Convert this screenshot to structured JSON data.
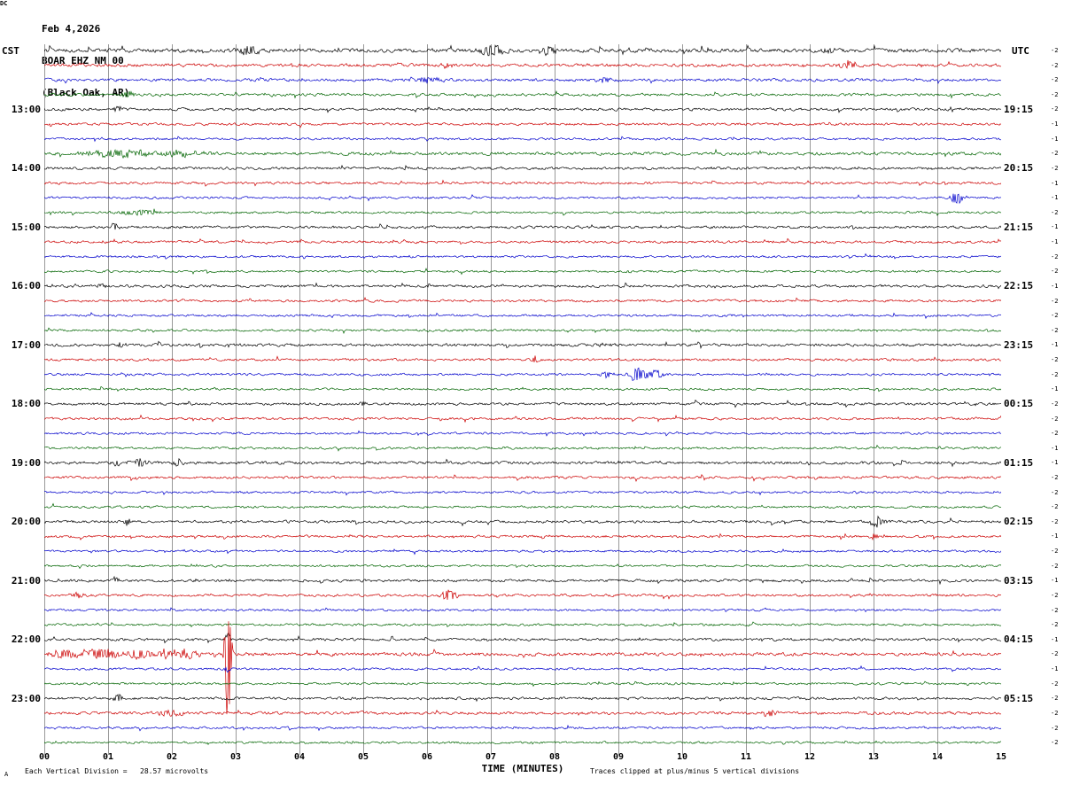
{
  "header": {
    "date": "Feb 4,2026",
    "station": "BOAR EHZ NM 00",
    "location": "(Black Oak, AR)"
  },
  "footnotes": {
    "left": "Each Vertical Division =   28.57 microvolts",
    "right": "Traces clipped at plus/minus 5 vertical divisions",
    "corner_mark": "A"
  },
  "chart_data": {
    "type": "line",
    "subtype": "helicorder-seismogram",
    "title": "BOAR EHZ NM 00 (Black Oak, AR) Feb 4,2026",
    "xlabel": "TIME (MINUTES)",
    "x_range": [
      0,
      15
    ],
    "x_ticks": [
      "00",
      "01",
      "02",
      "03",
      "04",
      "05",
      "06",
      "07",
      "08",
      "09",
      "10",
      "11",
      "12",
      "13",
      "14",
      "15"
    ],
    "left_time_axis": "CST",
    "right_time_axis": "UTC",
    "dc_label": "DC",
    "microvolts_per_division": 28.57,
    "clip_divisions": 5,
    "grid": true,
    "trace_colors_cycle": [
      "#000000",
      "#cc0000",
      "#0000cc",
      "#006400"
    ],
    "rows": [
      {
        "cst": "",
        "utc": "",
        "dc": -2,
        "amp": 1.7,
        "events": [
          [
            3.2,
            5,
            0.15
          ],
          [
            7.0,
            6,
            0.2
          ],
          [
            7.9,
            5,
            0.15
          ],
          [
            12.3,
            3,
            0.12
          ]
        ]
      },
      {
        "cst": "",
        "utc": "",
        "dc": -2,
        "amp": 1.4,
        "events": [
          [
            6.3,
            3,
            0.1
          ],
          [
            12.6,
            4,
            0.15
          ]
        ]
      },
      {
        "cst": "",
        "utc": "",
        "dc": -2,
        "amp": 1.3,
        "events": [
          [
            6.0,
            3,
            0.2
          ],
          [
            8.8,
            3,
            0.15
          ]
        ]
      },
      {
        "cst": "",
        "utc": "",
        "dc": -2,
        "amp": 1.2,
        "events": [
          [
            1.3,
            3,
            0.12
          ]
        ]
      },
      {
        "cst": "13:00",
        "utc": "19:15",
        "dc": -2,
        "amp": 1.2,
        "events": [
          [
            1.15,
            6,
            0.05
          ]
        ]
      },
      {
        "cst": "",
        "utc": "",
        "dc": -1,
        "amp": 1.1,
        "events": []
      },
      {
        "cst": "",
        "utc": "",
        "dc": -1,
        "amp": 1.0,
        "events": []
      },
      {
        "cst": "",
        "utc": "",
        "dc": -2,
        "amp": 1.4,
        "events": [
          [
            1.2,
            4,
            0.5
          ],
          [
            2.1,
            3,
            0.4
          ]
        ]
      },
      {
        "cst": "14:00",
        "utc": "20:15",
        "dc": -2,
        "amp": 1.2,
        "events": []
      },
      {
        "cst": "",
        "utc": "",
        "dc": -1,
        "amp": 1.1,
        "events": []
      },
      {
        "cst": "",
        "utc": "",
        "dc": -1,
        "amp": 1.0,
        "events": [
          [
            14.3,
            8,
            0.08
          ]
        ]
      },
      {
        "cst": "",
        "utc": "",
        "dc": -2,
        "amp": 1.0,
        "events": [
          [
            1.5,
            3,
            0.3
          ]
        ]
      },
      {
        "cst": "15:00",
        "utc": "21:15",
        "dc": -1,
        "amp": 1.2,
        "events": [
          [
            1.1,
            5,
            0.05
          ]
        ]
      },
      {
        "cst": "",
        "utc": "",
        "dc": -1,
        "amp": 1.1,
        "events": []
      },
      {
        "cst": "",
        "utc": "",
        "dc": -2,
        "amp": 1.0,
        "events": []
      },
      {
        "cst": "",
        "utc": "",
        "dc": -2,
        "amp": 1.0,
        "events": []
      },
      {
        "cst": "16:00",
        "utc": "22:15",
        "dc": -1,
        "amp": 1.2,
        "events": [
          [
            0.9,
            3,
            0.06
          ]
        ]
      },
      {
        "cst": "",
        "utc": "",
        "dc": -2,
        "amp": 1.1,
        "events": []
      },
      {
        "cst": "",
        "utc": "",
        "dc": -2,
        "amp": 1.0,
        "events": []
      },
      {
        "cst": "",
        "utc": "",
        "dc": -2,
        "amp": 1.0,
        "events": []
      },
      {
        "cst": "17:00",
        "utc": "23:15",
        "dc": -1,
        "amp": 1.3,
        "events": [
          [
            1.2,
            3,
            0.06
          ],
          [
            8.8,
            3,
            0.08
          ]
        ]
      },
      {
        "cst": "",
        "utc": "",
        "dc": -2,
        "amp": 1.1,
        "events": [
          [
            7.7,
            4,
            0.06
          ]
        ]
      },
      {
        "cst": "",
        "utc": "",
        "dc": -2,
        "amp": 1.0,
        "events": [
          [
            8.8,
            4,
            0.1
          ],
          [
            9.3,
            8,
            0.15
          ],
          [
            9.6,
            5,
            0.1
          ]
        ]
      },
      {
        "cst": "",
        "utc": "",
        "dc": -1,
        "amp": 1.0,
        "events": []
      },
      {
        "cst": "18:00",
        "utc": "00:15",
        "dc": -2,
        "amp": 1.2,
        "events": [
          [
            5.0,
            3,
            0.06
          ]
        ]
      },
      {
        "cst": "",
        "utc": "",
        "dc": -2,
        "amp": 1.1,
        "events": []
      },
      {
        "cst": "",
        "utc": "",
        "dc": -2,
        "amp": 1.0,
        "events": []
      },
      {
        "cst": "",
        "utc": "",
        "dc": -1,
        "amp": 1.0,
        "events": []
      },
      {
        "cst": "19:00",
        "utc": "01:15",
        "dc": -1,
        "amp": 1.3,
        "events": [
          [
            1.15,
            6,
            0.06
          ],
          [
            1.5,
            5,
            0.1
          ],
          [
            2.1,
            3,
            0.08
          ]
        ]
      },
      {
        "cst": "",
        "utc": "",
        "dc": -2,
        "amp": 1.1,
        "events": []
      },
      {
        "cst": "",
        "utc": "",
        "dc": -2,
        "amp": 1.0,
        "events": []
      },
      {
        "cst": "",
        "utc": "",
        "dc": -2,
        "amp": 1.0,
        "events": []
      },
      {
        "cst": "20:00",
        "utc": "02:15",
        "dc": -2,
        "amp": 1.2,
        "events": [
          [
            1.3,
            4,
            0.06
          ],
          [
            13.05,
            7,
            0.1
          ]
        ]
      },
      {
        "cst": "",
        "utc": "",
        "dc": -1,
        "amp": 1.1,
        "events": [
          [
            13.0,
            3,
            0.1
          ]
        ]
      },
      {
        "cst": "",
        "utc": "",
        "dc": -2,
        "amp": 1.0,
        "events": []
      },
      {
        "cst": "",
        "utc": "",
        "dc": -2,
        "amp": 1.0,
        "events": []
      },
      {
        "cst": "21:00",
        "utc": "03:15",
        "dc": -1,
        "amp": 1.2,
        "events": [
          [
            1.1,
            4,
            0.06
          ]
        ]
      },
      {
        "cst": "",
        "utc": "",
        "dc": -2,
        "amp": 1.1,
        "events": [
          [
            0.5,
            3,
            0.1
          ],
          [
            6.35,
            7,
            0.12
          ]
        ]
      },
      {
        "cst": "",
        "utc": "",
        "dc": -2,
        "amp": 1.0,
        "events": []
      },
      {
        "cst": "",
        "utc": "",
        "dc": -2,
        "amp": 1.0,
        "events": []
      },
      {
        "cst": "22:00",
        "utc": "04:15",
        "dc": -1,
        "amp": 1.2,
        "events": [
          [
            2.88,
            10,
            0.04
          ]
        ]
      },
      {
        "cst": "",
        "utc": "",
        "dc": -2,
        "amp": 1.5,
        "events": [
          [
            0.3,
            5,
            0.2
          ],
          [
            0.9,
            6,
            0.25
          ],
          [
            1.5,
            5,
            0.2
          ],
          [
            1.9,
            4,
            0.15
          ],
          [
            2.2,
            5,
            0.2
          ],
          [
            2.88,
            85,
            0.05
          ]
        ]
      },
      {
        "cst": "",
        "utc": "",
        "dc": -1,
        "amp": 1.0,
        "events": [
          [
            2.88,
            4,
            0.04
          ]
        ]
      },
      {
        "cst": "",
        "utc": "",
        "dc": -2,
        "amp": 1.0,
        "events": []
      },
      {
        "cst": "23:00",
        "utc": "05:15",
        "dc": -2,
        "amp": 1.2,
        "events": [
          [
            1.15,
            6,
            0.06
          ]
        ]
      },
      {
        "cst": "",
        "utc": "",
        "dc": -2,
        "amp": 1.3,
        "events": [
          [
            2.0,
            3,
            0.2
          ],
          [
            11.4,
            3,
            0.12
          ]
        ]
      },
      {
        "cst": "",
        "utc": "",
        "dc": -2,
        "amp": 1.0,
        "events": []
      },
      {
        "cst": "",
        "utc": "",
        "dc": -2,
        "amp": 1.0,
        "events": []
      }
    ]
  }
}
